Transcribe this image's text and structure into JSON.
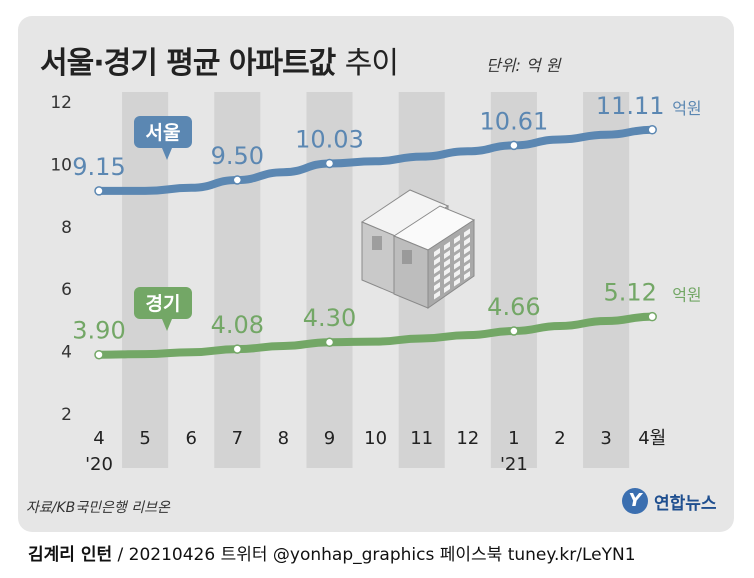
{
  "title": {
    "main": "서울·경기 평균 아파트값",
    "suffix": "추이"
  },
  "unit_label": "단위: 억 원",
  "source": "자료/KB국민은행 리브온",
  "logo_text": "연합뉴스",
  "footer": {
    "author": "김계리 인턴",
    "rest": "/ 20210426   트위터 @yonhap_graphics  페이스북 tuney.kr/LeYN1"
  },
  "colors": {
    "seoul": "#5b87b2",
    "gyeonggi": "#73a766",
    "panel": "#e6e6e6",
    "stripe": "#d3d3d3"
  },
  "chart_data": {
    "type": "line",
    "categories": [
      "4",
      "5",
      "6",
      "7",
      "8",
      "9",
      "10",
      "11",
      "12",
      "1",
      "2",
      "3",
      "4월"
    ],
    "sub_labels": [
      "'20",
      "",
      "",
      "",
      "",
      "",
      "",
      "",
      "",
      "'21",
      "",
      "",
      ""
    ],
    "yticks": [
      2,
      4,
      6,
      8,
      10,
      12
    ],
    "ylim": [
      2,
      12
    ],
    "grid": false,
    "series": [
      {
        "name": "서울",
        "color": "#5b87b2",
        "values": [
          9.15,
          9.15,
          9.25,
          9.5,
          9.75,
          10.03,
          10.1,
          10.25,
          10.42,
          10.61,
          10.8,
          10.95,
          11.11
        ],
        "labels": [
          {
            "index": 0,
            "text": "9.15"
          },
          {
            "index": 3,
            "text": "9.50"
          },
          {
            "index": 5,
            "text": "10.03"
          },
          {
            "index": 9,
            "text": "10.61"
          },
          {
            "index": 12,
            "text": "11.11",
            "unit": "억원"
          }
        ]
      },
      {
        "name": "경기",
        "color": "#73a766",
        "values": [
          3.9,
          3.92,
          3.98,
          4.08,
          4.18,
          4.3,
          4.32,
          4.42,
          4.53,
          4.66,
          4.82,
          4.98,
          5.12
        ],
        "labels": [
          {
            "index": 0,
            "text": "3.90"
          },
          {
            "index": 3,
            "text": "4.08"
          },
          {
            "index": 5,
            "text": "4.30"
          },
          {
            "index": 9,
            "text": "4.66"
          },
          {
            "index": 12,
            "text": "5.12",
            "unit": "억원"
          }
        ]
      }
    ]
  }
}
